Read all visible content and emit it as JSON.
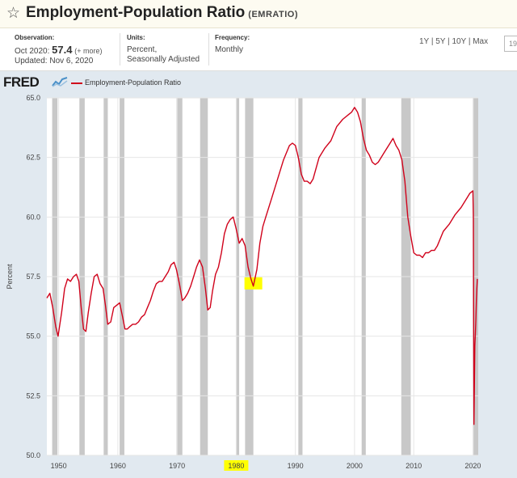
{
  "header": {
    "title": "Employment-Population Ratio",
    "series_id": "(EMRATIO)"
  },
  "observation": {
    "label": "Observation:",
    "date": "Oct 2020:",
    "value": "57.4",
    "more": "(+ more)",
    "updated": "Updated: Nov 6, 2020"
  },
  "units": {
    "label": "Units:",
    "line1": "Percent,",
    "line2": "Seasonally Adjusted"
  },
  "frequency": {
    "label": "Frequency:",
    "value": "Monthly"
  },
  "ranges": [
    "1Y",
    "5Y",
    "10Y",
    "Max"
  ],
  "date_input": "19",
  "logo": "FRED",
  "colors": {
    "line": "#d0021b",
    "recession": "#c8c8c8",
    "highlight": "#ffff00",
    "plot_bg": "#ffffff",
    "frame_bg": "#e1e9f0"
  },
  "chart_data": {
    "type": "line",
    "title": "Employment-Population Ratio",
    "xlabel": "",
    "ylabel": "Percent",
    "xlim": [
      1948,
      2020.9
    ],
    "ylim": [
      50.0,
      65.0
    ],
    "y_ticks": [
      "50.0",
      "52.5",
      "55.0",
      "57.5",
      "60.0",
      "62.5",
      "65.0"
    ],
    "x_ticks": [
      "1950",
      "1960",
      "1970",
      "1980",
      "1990",
      "2000",
      "2010",
      "2020"
    ],
    "legend": [
      "Employment-Population Ratio"
    ],
    "grid": true,
    "recessions": [
      [
        1948.9,
        1949.8
      ],
      [
        1953.5,
        1954.4
      ],
      [
        1957.6,
        1958.3
      ],
      [
        1960.3,
        1961.1
      ],
      [
        1969.9,
        1970.9
      ],
      [
        1973.9,
        1975.2
      ],
      [
        1980.0,
        1980.5
      ],
      [
        1981.5,
        1982.9
      ],
      [
        1990.5,
        1991.2
      ],
      [
        2001.2,
        2001.9
      ],
      [
        2007.9,
        2009.5
      ],
      [
        2020.1,
        2020.9
      ]
    ],
    "highlights": [
      {
        "x": 1982.9,
        "y": 57.2
      },
      {
        "x": "1980"
      }
    ],
    "series": [
      {
        "name": "Employment-Population Ratio",
        "x": [
          1948.0,
          1948.5,
          1949.0,
          1949.5,
          1949.9,
          1950.5,
          1951.0,
          1951.5,
          1952.0,
          1952.5,
          1953.0,
          1953.4,
          1953.8,
          1954.2,
          1954.6,
          1955.0,
          1955.5,
          1956.0,
          1956.5,
          1957.0,
          1957.5,
          1957.9,
          1958.3,
          1958.8,
          1959.3,
          1959.8,
          1960.3,
          1960.8,
          1961.2,
          1961.6,
          1962.0,
          1962.5,
          1963.0,
          1963.5,
          1964.0,
          1964.5,
          1965.0,
          1965.5,
          1966.0,
          1966.5,
          1967.0,
          1967.5,
          1968.0,
          1968.5,
          1969.0,
          1969.5,
          1969.9,
          1970.4,
          1970.9,
          1971.3,
          1971.8,
          1972.3,
          1972.8,
          1973.3,
          1973.8,
          1974.3,
          1974.8,
          1975.2,
          1975.6,
          1976.0,
          1976.5,
          1977.0,
          1977.5,
          1978.0,
          1978.5,
          1979.0,
          1979.5,
          1980.0,
          1980.5,
          1981.0,
          1981.5,
          1982.0,
          1982.5,
          1982.9,
          1983.5,
          1984.0,
          1984.5,
          1985.0,
          1986.0,
          1987.0,
          1988.0,
          1989.0,
          1989.5,
          1990.0,
          1990.5,
          1991.0,
          1991.5,
          1992.0,
          1992.5,
          1993.0,
          1994.0,
          1995.0,
          1996.0,
          1997.0,
          1998.0,
          1999.0,
          1999.5,
          2000.0,
          2000.5,
          2001.0,
          2001.5,
          2002.0,
          2002.5,
          2003.0,
          2003.5,
          2004.0,
          2005.0,
          2006.0,
          2006.5,
          2007.0,
          2007.5,
          2008.0,
          2008.5,
          2009.0,
          2009.5,
          2010.0,
          2010.5,
          2011.0,
          2011.5,
          2012.0,
          2012.5,
          2013.0,
          2013.5,
          2014.0,
          2015.0,
          2016.0,
          2017.0,
          2018.0,
          2019.0,
          2019.5,
          2020.0,
          2020.08,
          2020.17,
          2020.25,
          2020.33,
          2020.42,
          2020.5,
          2020.58,
          2020.67,
          2020.75
        ],
        "values": [
          56.6,
          56.8,
          56.2,
          55.4,
          55.0,
          56.0,
          57.0,
          57.4,
          57.3,
          57.5,
          57.6,
          57.3,
          56.2,
          55.3,
          55.2,
          56.0,
          56.8,
          57.5,
          57.6,
          57.2,
          57.0,
          56.3,
          55.5,
          55.6,
          56.2,
          56.3,
          56.4,
          55.8,
          55.3,
          55.3,
          55.4,
          55.5,
          55.5,
          55.6,
          55.8,
          55.9,
          56.2,
          56.5,
          56.9,
          57.2,
          57.3,
          57.3,
          57.5,
          57.7,
          58.0,
          58.1,
          57.8,
          57.2,
          56.5,
          56.6,
          56.8,
          57.1,
          57.5,
          57.9,
          58.2,
          57.9,
          57.0,
          56.1,
          56.2,
          56.9,
          57.6,
          57.9,
          58.5,
          59.3,
          59.7,
          59.9,
          60.0,
          59.5,
          58.9,
          59.1,
          58.8,
          57.9,
          57.4,
          57.1,
          57.8,
          58.9,
          59.6,
          60.0,
          60.8,
          61.6,
          62.4,
          63.0,
          63.1,
          63.0,
          62.5,
          61.8,
          61.5,
          61.5,
          61.4,
          61.6,
          62.5,
          62.9,
          63.2,
          63.8,
          64.1,
          64.3,
          64.4,
          64.6,
          64.4,
          64.0,
          63.3,
          62.8,
          62.6,
          62.3,
          62.2,
          62.3,
          62.7,
          63.1,
          63.3,
          63.0,
          62.8,
          62.4,
          61.5,
          60.0,
          59.2,
          58.5,
          58.4,
          58.4,
          58.3,
          58.5,
          58.5,
          58.6,
          58.6,
          58.8,
          59.4,
          59.7,
          60.1,
          60.4,
          60.8,
          61.0,
          61.1,
          60.0,
          51.3,
          52.8,
          54.6,
          55.1,
          55.7,
          56.5,
          57.0,
          57.4
        ]
      }
    ]
  }
}
